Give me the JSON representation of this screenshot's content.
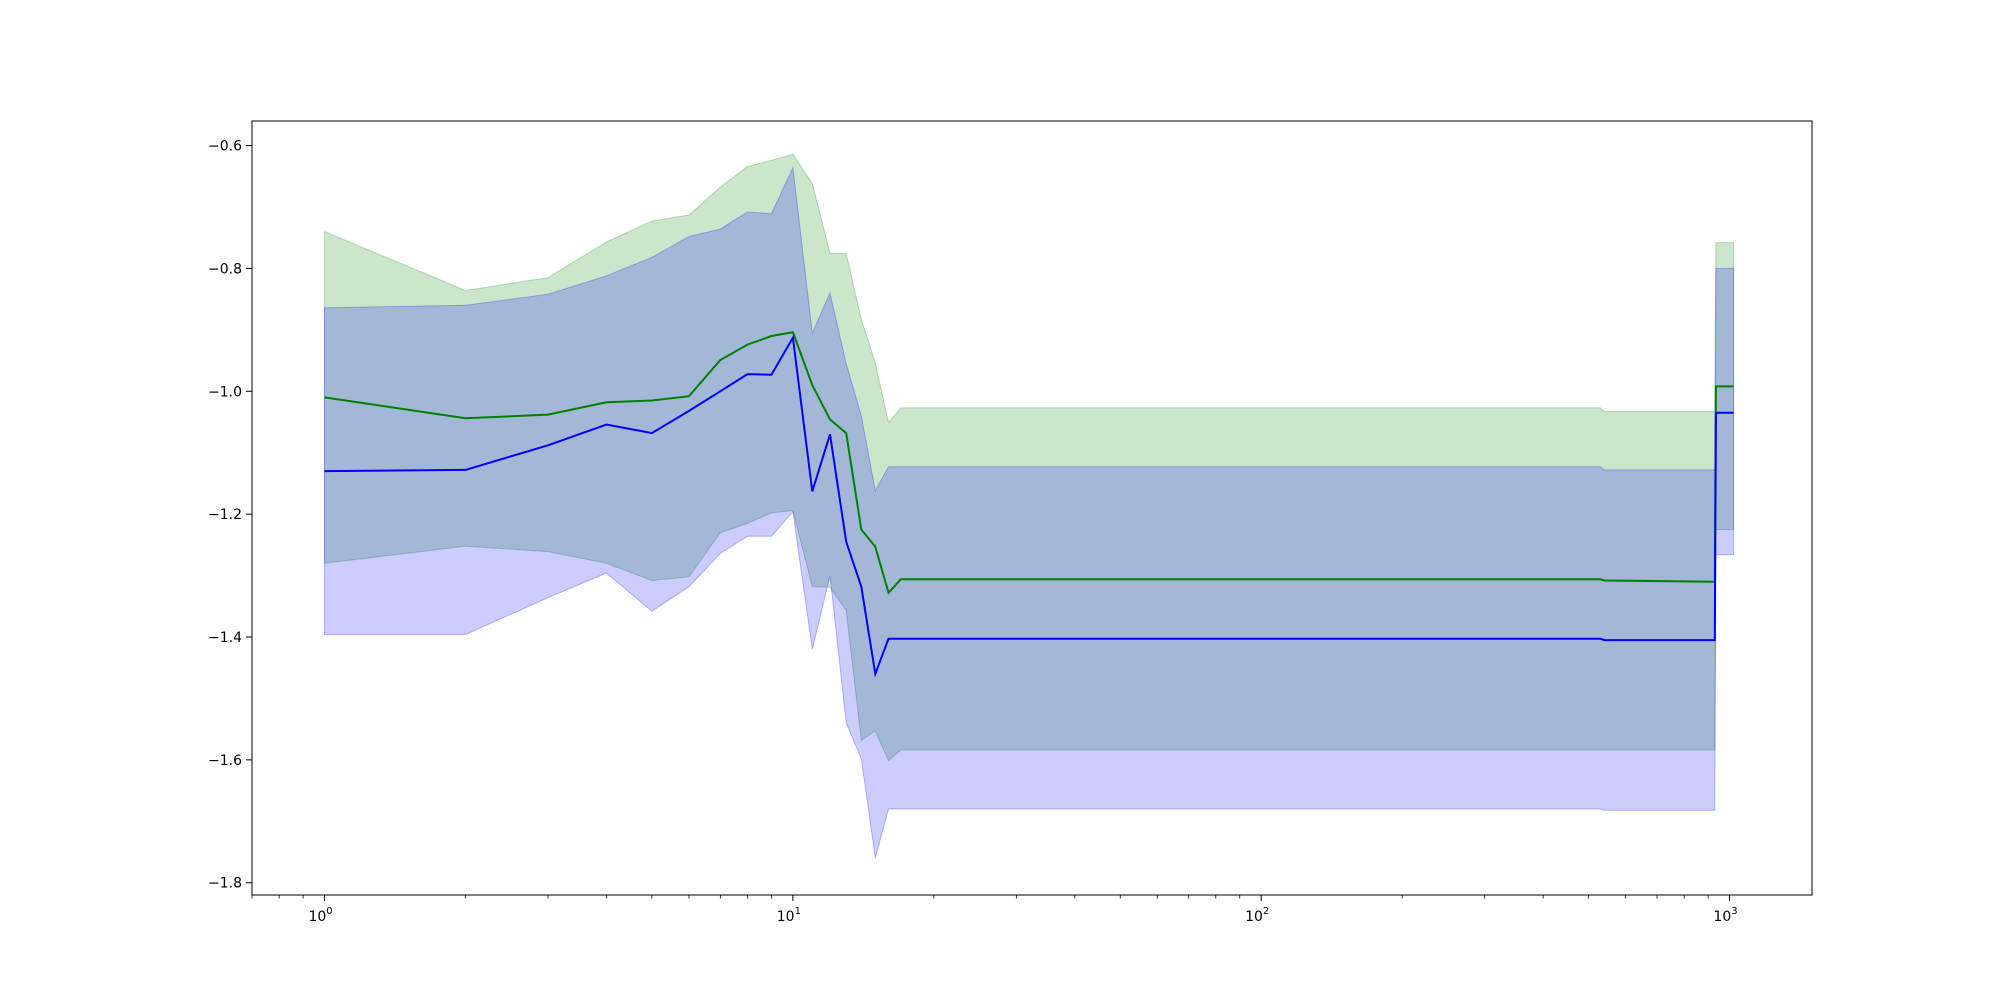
{
  "chart_data": {
    "type": "line",
    "title": "",
    "xlabel": "",
    "ylabel": "",
    "xscale": "log",
    "xlim": [
      0.7,
      1500
    ],
    "ylim": [
      -1.82,
      -0.56
    ],
    "grid": false,
    "legend": "none",
    "x_ticks": [
      {
        "value": 1,
        "base": "10",
        "exp": "0"
      },
      {
        "value": 10,
        "base": "10",
        "exp": "1"
      },
      {
        "value": 100,
        "base": "10",
        "exp": "2"
      },
      {
        "value": 1000,
        "base": "10",
        "exp": "3"
      }
    ],
    "y_ticks": [
      {
        "value": -0.6,
        "label": "−0.6"
      },
      {
        "value": -0.8,
        "label": "−0.8"
      },
      {
        "value": -1.0,
        "label": "−1.0"
      },
      {
        "value": -1.2,
        "label": "−1.2"
      },
      {
        "value": -1.4,
        "label": "−1.4"
      },
      {
        "value": -1.6,
        "label": "−1.6"
      },
      {
        "value": -1.8,
        "label": "−1.8"
      }
    ],
    "series": [
      {
        "color": "#008000",
        "band_color": "#008000",
        "band_opacity": 0.2,
        "points": [
          {
            "x": 1,
            "y": -1.01,
            "lo": -1.28,
            "hi": -0.74
          },
          {
            "x": 2,
            "y": -1.044,
            "lo": -1.252,
            "hi": -0.836
          },
          {
            "x": 3,
            "y": -1.038,
            "lo": -1.261,
            "hi": -0.815
          },
          {
            "x": 4,
            "y": -1.018,
            "lo": -1.28,
            "hi": -0.757
          },
          {
            "x": 5,
            "y": -1.015,
            "lo": -1.308,
            "hi": -0.723
          },
          {
            "x": 6,
            "y": -1.008,
            "lo": -1.302,
            "hi": -0.713
          },
          {
            "x": 7,
            "y": -0.949,
            "lo": -1.23,
            "hi": -0.668
          },
          {
            "x": 8,
            "y": -0.924,
            "lo": -1.215,
            "hi": -0.634
          },
          {
            "x": 9,
            "y": -0.91,
            "lo": -1.198,
            "hi": -0.624
          },
          {
            "x": 10,
            "y": -0.904,
            "lo": -1.194,
            "hi": -0.614
          },
          {
            "x": 11,
            "y": -0.99,
            "lo": -1.318,
            "hi": -0.662
          },
          {
            "x": 12,
            "y": -1.046,
            "lo": -1.319,
            "hi": -0.775
          },
          {
            "x": 13,
            "y": -1.068,
            "lo": -1.357,
            "hi": -0.776
          },
          {
            "x": 14,
            "y": -1.225,
            "lo": -1.568,
            "hi": -0.883
          },
          {
            "x": 15,
            "y": -1.253,
            "lo": -1.553,
            "hi": -0.954
          },
          {
            "x": 16,
            "y": -1.328,
            "lo": -1.601,
            "hi": -1.051
          },
          {
            "x": 17,
            "y": -1.306,
            "lo": -1.584,
            "hi": -1.027
          },
          {
            "x": 530,
            "y": -1.306,
            "lo": -1.584,
            "hi": -1.027
          },
          {
            "x": 540,
            "y": -1.308,
            "lo": -1.584,
            "hi": -1.033
          },
          {
            "x": 930,
            "y": -1.31,
            "lo": -1.584,
            "hi": -1.033
          },
          {
            "x": 935,
            "y": -0.992,
            "lo": -1.225,
            "hi": -0.758
          },
          {
            "x": 1020,
            "y": -0.992,
            "lo": -1.225,
            "hi": -0.758
          }
        ]
      },
      {
        "color": "#0000ff",
        "band_color": "#0000ff",
        "band_opacity": 0.2,
        "points": [
          {
            "x": 1,
            "y": -1.13,
            "lo": -1.396,
            "hi": -0.864
          },
          {
            "x": 2,
            "y": -1.128,
            "lo": -1.396,
            "hi": -0.86
          },
          {
            "x": 3,
            "y": -1.088,
            "lo": -1.336,
            "hi": -0.842
          },
          {
            "x": 4,
            "y": -1.054,
            "lo": -1.296,
            "hi": -0.812
          },
          {
            "x": 5,
            "y": -1.068,
            "lo": -1.358,
            "hi": -0.782
          },
          {
            "x": 6,
            "y": -1.032,
            "lo": -1.318,
            "hi": -0.748
          },
          {
            "x": 7,
            "y": -1.0,
            "lo": -1.264,
            "hi": -0.736
          },
          {
            "x": 8,
            "y": -0.972,
            "lo": -1.236,
            "hi": -0.708
          },
          {
            "x": 9,
            "y": -0.973,
            "lo": -1.236,
            "hi": -0.711
          },
          {
            "x": 10,
            "y": -0.913,
            "lo": -1.196,
            "hi": -0.636
          },
          {
            "x": 11,
            "y": -1.163,
            "lo": -1.42,
            "hi": -0.905
          },
          {
            "x": 12,
            "y": -1.07,
            "lo": -1.3,
            "hi": -0.84
          },
          {
            "x": 13,
            "y": -1.245,
            "lo": -1.54,
            "hi": -0.955
          },
          {
            "x": 14,
            "y": -1.318,
            "lo": -1.598,
            "hi": -1.04
          },
          {
            "x": 15,
            "y": -1.46,
            "lo": -1.76,
            "hi": -1.162
          },
          {
            "x": 16,
            "y": -1.403,
            "lo": -1.68,
            "hi": -1.123
          },
          {
            "x": 17,
            "y": -1.403,
            "lo": -1.68,
            "hi": -1.123
          },
          {
            "x": 530,
            "y": -1.403,
            "lo": -1.68,
            "hi": -1.123
          },
          {
            "x": 540,
            "y": -1.405,
            "lo": -1.682,
            "hi": -1.128
          },
          {
            "x": 930,
            "y": -1.405,
            "lo": -1.682,
            "hi": -1.128
          },
          {
            "x": 935,
            "y": -1.035,
            "lo": -1.266,
            "hi": -0.8
          },
          {
            "x": 1020,
            "y": -1.035,
            "lo": -1.266,
            "hi": -0.8
          }
        ]
      }
    ]
  }
}
